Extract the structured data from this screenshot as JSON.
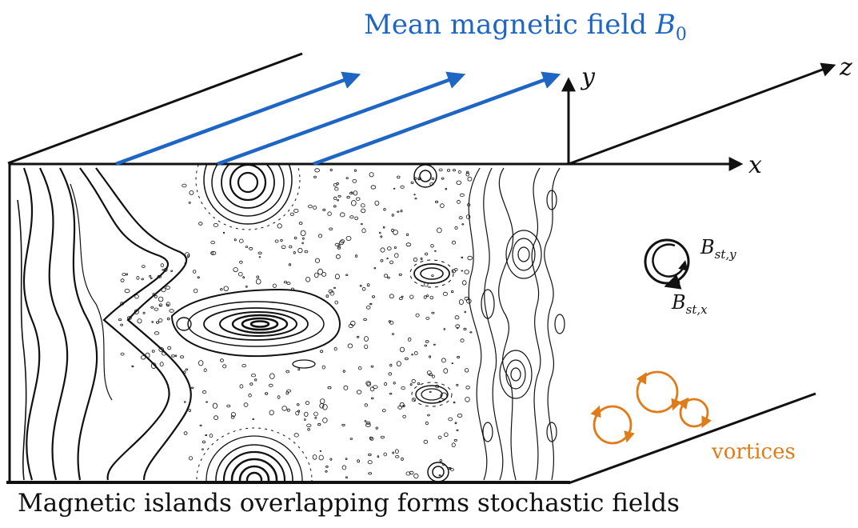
{
  "title": {
    "text": "Mean magnetic field ",
    "symbol": "B",
    "subscript": "0"
  },
  "caption": "Magnetic islands overlapping forms stochastic fields",
  "axes": {
    "x": "x",
    "y": "y",
    "z": "z"
  },
  "stochastic_field_labels": {
    "y": {
      "symbol": "B",
      "subscript": "st,y"
    },
    "x": {
      "symbol": "B",
      "subscript": "st,x"
    }
  },
  "vortices_label": "vortices",
  "colors": {
    "field_arrows": "#1f66c4",
    "vortices": "#e07b1a",
    "lines": "#111111"
  }
}
